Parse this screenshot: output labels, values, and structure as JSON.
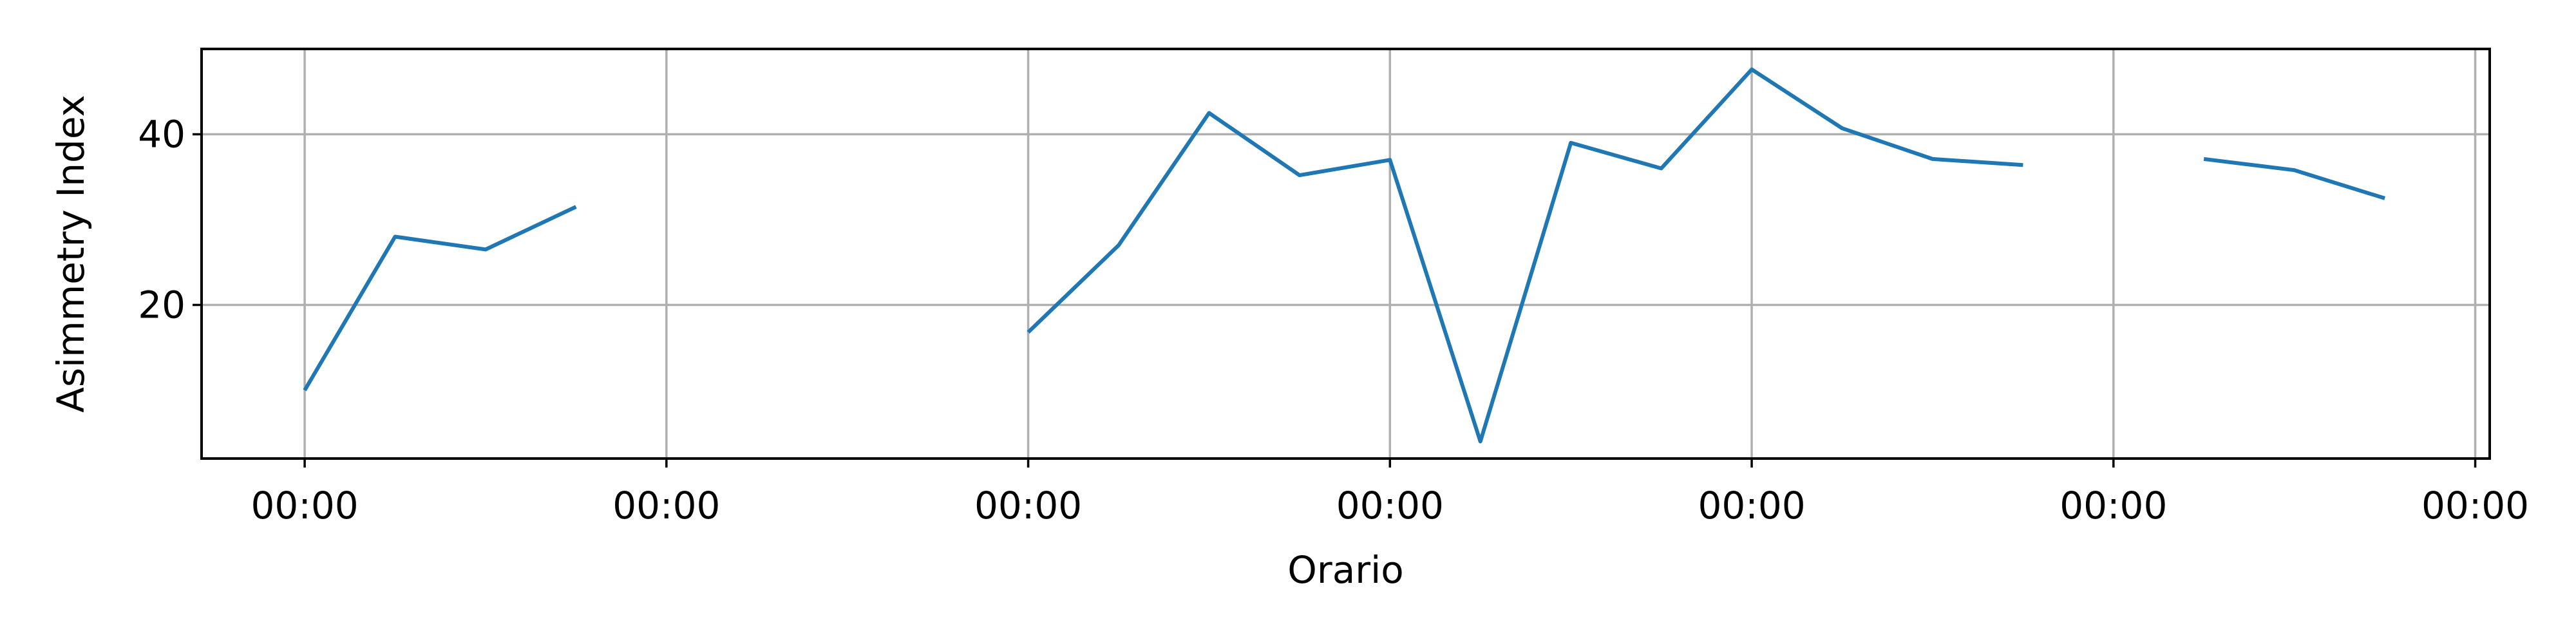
{
  "chart_data": {
    "type": "line",
    "title": "",
    "xlabel": "Orario",
    "ylabel": "Asimmetry Index",
    "x_tick_labels": [
      "00:00",
      "00:00",
      "00:00",
      "00:00",
      "00:00",
      "00:00",
      "00:00"
    ],
    "y_ticks": [
      20,
      40
    ],
    "ylim": [
      2,
      50
    ],
    "grid": true,
    "colors": {
      "line": "#1f77b4",
      "grid": "#b0b0b0",
      "axes": "#000000"
    },
    "series": [
      {
        "x": [
          0,
          0.25,
          0.5,
          0.75,
          1,
          1.25,
          1.5,
          1.75,
          2,
          2.25,
          2.5,
          2.75,
          3,
          3.25,
          3.5,
          3.75,
          4,
          4.25,
          4.5,
          4.75,
          5,
          5.25,
          5.5,
          5.75
        ],
        "values": [
          10,
          28,
          26.5,
          31.5,
          null,
          null,
          null,
          null,
          16.8,
          27,
          42.5,
          35.2,
          37,
          4,
          39,
          36,
          47.6,
          40.7,
          37.1,
          36.4,
          null,
          37.1,
          35.8,
          32.5
        ]
      }
    ]
  }
}
